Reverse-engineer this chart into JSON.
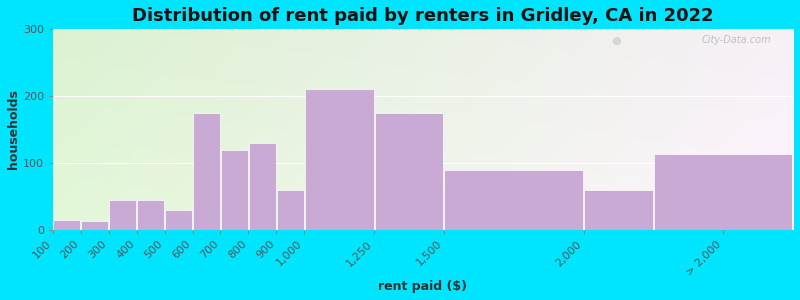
{
  "title": "Distribution of rent paid by renters in Gridley, CA in 2022",
  "xlabel": "rent paid ($)",
  "ylabel": "households",
  "bar_color": "#c9aad4",
  "bar_edge_color": "#ffffff",
  "background_outer": "#00e5ff",
  "ylim": [
    0,
    300
  ],
  "yticks": [
    0,
    100,
    200,
    300
  ],
  "tick_labels": [
    "100",
    "200",
    "300",
    "400",
    "500",
    "600",
    "700",
    "800",
    "900",
    "1,000",
    "1,250",
    "1,500",
    "2,000",
    "> 2,000"
  ],
  "tick_positions": [
    100,
    200,
    300,
    400,
    500,
    600,
    700,
    800,
    900,
    1000,
    1250,
    1500,
    2000,
    2500
  ],
  "bar_lefts": [
    100,
    200,
    300,
    400,
    500,
    600,
    700,
    800,
    900,
    1000,
    1250,
    1500,
    2000,
    2250
  ],
  "bar_widths": [
    100,
    100,
    100,
    100,
    100,
    100,
    100,
    100,
    100,
    250,
    250,
    500,
    250,
    500
  ],
  "values": [
    15,
    13,
    45,
    45,
    30,
    175,
    120,
    130,
    60,
    210,
    175,
    90,
    60,
    113
  ],
  "xlim": [
    100,
    2750
  ],
  "title_fontsize": 13,
  "axis_label_fontsize": 9,
  "tick_fontsize": 8,
  "watermark_text": "City-Data.com"
}
